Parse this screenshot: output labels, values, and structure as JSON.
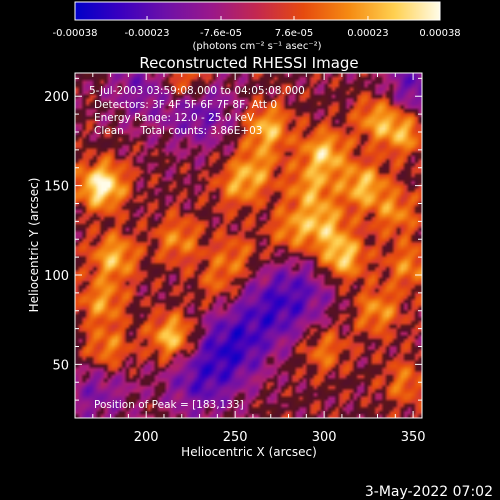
{
  "colorbar": {
    "tick_labels": [
      "-0.00038",
      "-0.00023",
      "-7.6e-05",
      "7.6e-05",
      "0.00023",
      "0.00038"
    ],
    "tick_values": [
      -0.00038,
      -0.00023,
      -7.6e-05,
      7.6e-05,
      0.00023,
      0.00038
    ],
    "range": [
      -0.00038,
      0.00038
    ],
    "units_label": "(photons cm⁻² s⁻¹ asec⁻²)",
    "colors": [
      "#0000c8",
      "#3a00c0",
      "#6e10a8",
      "#9a188a",
      "#c4284e",
      "#e64a0e",
      "#f58a12",
      "#ffd050",
      "#fffce8"
    ]
  },
  "plot": {
    "title": "Reconstructed RHESSI Image",
    "info_lines": [
      "5-Jul-2003 03:59:08.000 to 04:05:08.000",
      "Detectors: 3F 4F 5F 6F 7F 8F, Att 0",
      "Energy Range: 12.0 - 25.0 keV",
      "Clean     Total counts: 3.86E+03"
    ],
    "peak_label": "Position of Peak = [183,133]"
  },
  "chart_data": {
    "type": "heatmap",
    "title": "Reconstructed RHESSI Image",
    "xlabel": "Heliocentric X (arcsec)",
    "ylabel": "Heliocentric Y (arcsec)",
    "xlim": [
      160,
      355
    ],
    "ylim": [
      20,
      213
    ],
    "xticks": [
      200,
      250,
      300,
      350
    ],
    "yticks": [
      50,
      100,
      150,
      200
    ],
    "xtick_labels": [
      "200",
      "250",
      "300",
      "350"
    ],
    "ytick_labels": [
      "50",
      "100",
      "150",
      "200"
    ],
    "value_range": [
      -0.00038,
      0.00038
    ],
    "peak_position": [
      183,
      133
    ],
    "features": [
      {
        "x": 175,
        "y": 150,
        "value": 0.00038
      },
      {
        "x": 182,
        "y": 110,
        "value": 0.00025
      },
      {
        "x": 175,
        "y": 85,
        "value": 0.0002
      },
      {
        "x": 178,
        "y": 58,
        "value": 0.0002
      },
      {
        "x": 215,
        "y": 65,
        "value": 0.0003
      },
      {
        "x": 222,
        "y": 208,
        "value": 0.00022
      },
      {
        "x": 218,
        "y": 120,
        "value": 0.00018
      },
      {
        "x": 240,
        "y": 95,
        "value": 0.00012
      },
      {
        "x": 252,
        "y": 150,
        "value": 0.00018
      },
      {
        "x": 268,
        "y": 182,
        "value": 0.00026
      },
      {
        "x": 282,
        "y": 125,
        "value": 0.00018
      },
      {
        "x": 292,
        "y": 148,
        "value": 0.0002
      },
      {
        "x": 300,
        "y": 128,
        "value": 0.00022
      },
      {
        "x": 300,
        "y": 168,
        "value": 0.00028
      },
      {
        "x": 310,
        "y": 110,
        "value": 0.0003
      },
      {
        "x": 322,
        "y": 150,
        "value": 0.00026
      },
      {
        "x": 330,
        "y": 188,
        "value": 0.00022
      },
      {
        "x": 345,
        "y": 180,
        "value": 0.00024
      },
      {
        "x": 340,
        "y": 135,
        "value": 0.00018
      },
      {
        "x": 330,
        "y": 80,
        "value": 0.0002
      },
      {
        "x": 300,
        "y": 58,
        "value": 0.00016
      },
      {
        "x": 345,
        "y": 40,
        "value": 0.00015
      },
      {
        "x": 348,
        "y": 105,
        "value": 0.00018
      },
      {
        "x": 262,
        "y": 160,
        "value": 0.00016
      },
      {
        "x": 250,
        "y": 110,
        "value": 0.00014
      },
      {
        "x": 197,
        "y": 205,
        "value": -0.00015
      },
      {
        "x": 230,
        "y": 192,
        "value": -0.0002
      },
      {
        "x": 248,
        "y": 60,
        "value": -0.00025
      },
      {
        "x": 230,
        "y": 40,
        "value": -0.0002
      },
      {
        "x": 270,
        "y": 80,
        "value": -0.0002
      },
      {
        "x": 172,
        "y": 35,
        "value": -0.00015
      },
      {
        "x": 352,
        "y": 205,
        "value": -0.0002
      },
      {
        "x": 288,
        "y": 92,
        "value": -0.00015
      }
    ]
  },
  "footer": {
    "timestamp": "3-May-2022 07:02"
  }
}
